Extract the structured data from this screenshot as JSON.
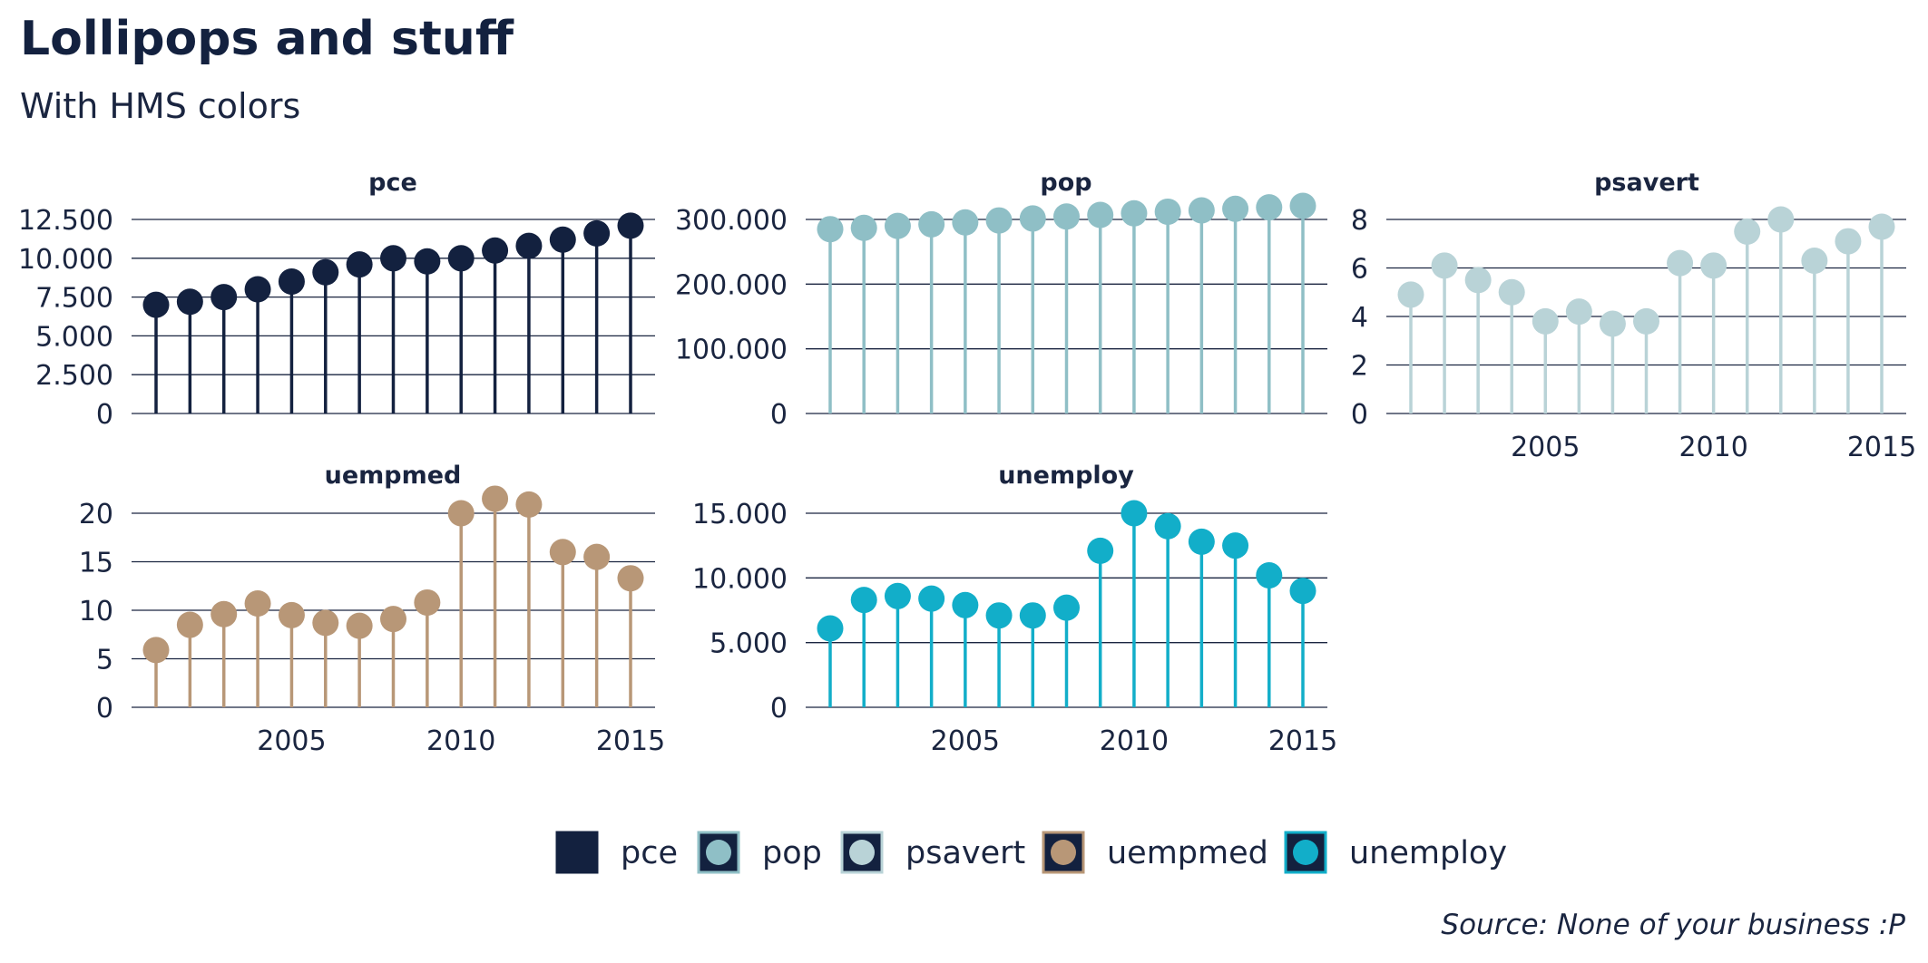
{
  "title": "Lollipops and stuff",
  "subtitle": "With HMS colors",
  "caption": "Source: None of your business :P",
  "legend_position": "bottom",
  "colors": {
    "pce": "#13213f",
    "pop": "#8fbfc6",
    "psavert": "#b9d3d7",
    "uempmed": "#b89777",
    "unemploy": "#12aec9",
    "grid": "#1a2540",
    "text": "#1a2540"
  },
  "legend": [
    {
      "key": "pce",
      "label": "pce"
    },
    {
      "key": "pop",
      "label": "pop"
    },
    {
      "key": "psavert",
      "label": "psavert"
    },
    {
      "key": "uempmed",
      "label": "uempmed"
    },
    {
      "key": "unemploy",
      "label": "unemploy"
    }
  ],
  "chart_data": {
    "type": "lollipop",
    "grid": "horizontal",
    "x_ticks": [
      "2005",
      "2010",
      "2015"
    ],
    "x_tick_values": [
      2005,
      2010,
      2015
    ],
    "xlim": [
      2001,
      2015
    ],
    "x": [
      2001,
      2002,
      2003,
      2004,
      2005,
      2006,
      2007,
      2008,
      2009,
      2010,
      2011,
      2012,
      2013,
      2014,
      2015
    ],
    "panels": [
      {
        "name": "pce",
        "values": [
          7000,
          7200,
          7500,
          8000,
          8500,
          9100,
          9600,
          10000,
          9800,
          10000,
          10500,
          10800,
          11200,
          11600,
          12100
        ],
        "ylim": [
          0,
          12500
        ],
        "y_ticks": [
          0,
          2500,
          5000,
          7500,
          10000,
          12500
        ],
        "y_tick_labels": [
          "0",
          "2.500",
          "5.000",
          "7.500",
          "10.000",
          "12.500"
        ],
        "show_x_ticks": false
      },
      {
        "name": "pop",
        "values": [
          285000,
          287000,
          290000,
          292500,
          295500,
          298500,
          301500,
          304500,
          307000,
          309500,
          312000,
          314000,
          316500,
          318700,
          321000
        ],
        "ylim": [
          0,
          300000
        ],
        "y_ticks": [
          0,
          100000,
          200000,
          300000
        ],
        "y_tick_labels": [
          "0",
          "100.000",
          "200.000",
          "300.000"
        ],
        "show_x_ticks": false
      },
      {
        "name": "psavert",
        "values": [
          4.9,
          6.1,
          5.5,
          5.0,
          3.8,
          4.2,
          3.7,
          3.8,
          6.2,
          6.1,
          7.5,
          8.0,
          6.3,
          7.1,
          7.7
        ],
        "ylim": [
          0,
          8
        ],
        "y_ticks": [
          0,
          2,
          4,
          6,
          8
        ],
        "y_tick_labels": [
          "0",
          "2",
          "4",
          "6",
          "8"
        ],
        "show_x_ticks": true
      },
      {
        "name": "uempmed",
        "values": [
          5.9,
          8.5,
          9.6,
          10.7,
          9.5,
          8.7,
          8.4,
          9.1,
          10.8,
          20.0,
          21.5,
          20.9,
          16.0,
          15.5,
          13.3
        ],
        "ylim": [
          0,
          20
        ],
        "y_ticks": [
          0,
          5,
          10,
          15,
          20
        ],
        "y_tick_labels": [
          "0",
          "5",
          "10",
          "15",
          "20"
        ],
        "show_x_ticks": true
      },
      {
        "name": "unemploy",
        "values": [
          6100,
          8300,
          8600,
          8400,
          7900,
          7100,
          7100,
          7700,
          12100,
          15000,
          14000,
          12800,
          12500,
          10200,
          9000
        ],
        "ylim": [
          0,
          15000
        ],
        "y_ticks": [
          0,
          5000,
          10000,
          15000
        ],
        "y_tick_labels": [
          "0",
          "5.000",
          "10.000",
          "15.000"
        ],
        "show_x_ticks": true
      }
    ]
  }
}
